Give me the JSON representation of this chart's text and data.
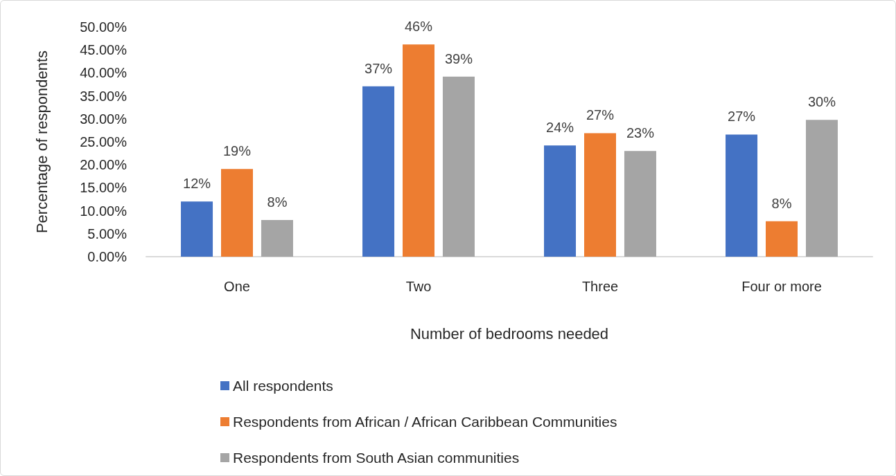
{
  "chart_data": {
    "type": "bar",
    "xlabel": "Number of bedrooms needed",
    "ylabel": "Percentage of respondents",
    "categories": [
      "One",
      "Two",
      "Three",
      "Four or more"
    ],
    "series": [
      {
        "name": "All respondents",
        "color": "#4472c4",
        "values": [
          12.0,
          37.1,
          24.2,
          26.6
        ],
        "value_labels": [
          "12%",
          "37%",
          "24%",
          "27%"
        ]
      },
      {
        "name": "Respondents from African / African Caribbean Communities",
        "color": "#ed7d31",
        "values": [
          19.1,
          46.2,
          26.9,
          7.7
        ],
        "value_labels": [
          "19%",
          "46%",
          "27%",
          "8%"
        ]
      },
      {
        "name": "Respondents from South Asian communities",
        "color": "#a5a5a5",
        "values": [
          8.0,
          39.2,
          23.0,
          29.8
        ],
        "value_labels": [
          "8%",
          "39%",
          "23%",
          "30%"
        ]
      }
    ],
    "ylim": [
      0,
      50
    ],
    "yticks": [
      {
        "value": 0,
        "label": "0.00%"
      },
      {
        "value": 5,
        "label": "5.00%"
      },
      {
        "value": 10,
        "label": "10.00%"
      },
      {
        "value": 15,
        "label": "15.00%"
      },
      {
        "value": 20,
        "label": "20.00%"
      },
      {
        "value": 25,
        "label": "25.00%"
      },
      {
        "value": 30,
        "label": "30.00%"
      },
      {
        "value": 35,
        "label": "35.00%"
      },
      {
        "value": 40,
        "label": "40.00%"
      },
      {
        "value": 45,
        "label": "45.00%"
      },
      {
        "value": 50,
        "label": "50.00%"
      }
    ],
    "grid": false,
    "legend": "bottom"
  }
}
